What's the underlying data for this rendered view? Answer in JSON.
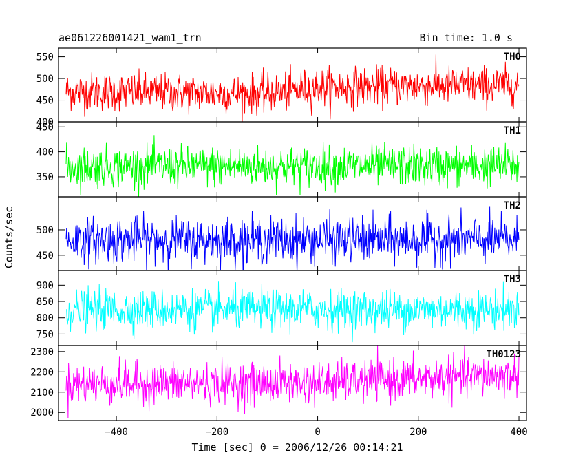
{
  "header": {
    "title": "ae061226001421_wam1_trn",
    "bin_time": "Bin time: 1.0 s"
  },
  "chart_data": {
    "type": "line",
    "xlabel": "Time [sec] 0 = 2006/12/26 00:14:21",
    "ylabel": "Counts/sec",
    "x_range": [
      -500,
      400
    ],
    "xlim": [
      -515,
      415
    ],
    "x_ticks": [
      -400,
      -200,
      0,
      200,
      400
    ],
    "x_tick_labels": [
      "−400",
      "−200",
      "0",
      "200",
      "400"
    ],
    "bin_time_s": 1.0,
    "panels": [
      {
        "name": "TH0",
        "color": "#ff0000",
        "ylim": [
          400,
          570
        ],
        "y_ticks": [
          400,
          450,
          500,
          550
        ],
        "y_tick_labels": [
          "400",
          "450",
          "500",
          "550"
        ],
        "trend": [
          [
            -500,
            470
          ],
          [
            -100,
            465
          ],
          [
            0,
            480
          ],
          [
            400,
            485
          ]
        ],
        "noise_sd": 22
      },
      {
        "name": "TH1",
        "color": "#00ff00",
        "ylim": [
          310,
          460
        ],
        "y_ticks": [
          350,
          400,
          450
        ],
        "y_tick_labels": [
          "350",
          "400",
          "450"
        ],
        "trend": [
          [
            -500,
            370
          ],
          [
            400,
            372
          ]
        ],
        "noise_sd": 20
      },
      {
        "name": "TH2",
        "color": "#0000ff",
        "ylim": [
          420,
          565
        ],
        "y_ticks": [
          450,
          500
        ],
        "y_tick_labels": [
          "450",
          "500"
        ],
        "trend": [
          [
            -500,
            480
          ],
          [
            400,
            480
          ]
        ],
        "noise_sd": 22
      },
      {
        "name": "TH3",
        "color": "#00ffff",
        "ylim": [
          715,
          945
        ],
        "y_ticks": [
          750,
          800,
          850,
          900
        ],
        "y_tick_labels": [
          "750",
          "800",
          "850",
          "900"
        ],
        "trend": [
          [
            -500,
            825
          ],
          [
            400,
            825
          ]
        ],
        "noise_sd": 30
      },
      {
        "name": "TH0123",
        "color": "#ff00ff",
        "ylim": [
          1960,
          2330
        ],
        "y_ticks": [
          2000,
          2100,
          2200,
          2300
        ],
        "y_tick_labels": [
          "2000",
          "2100",
          "2200",
          "2300"
        ],
        "trend": [
          [
            -500,
            2140
          ],
          [
            0,
            2145
          ],
          [
            400,
            2185
          ]
        ],
        "noise_sd": 50
      }
    ]
  }
}
